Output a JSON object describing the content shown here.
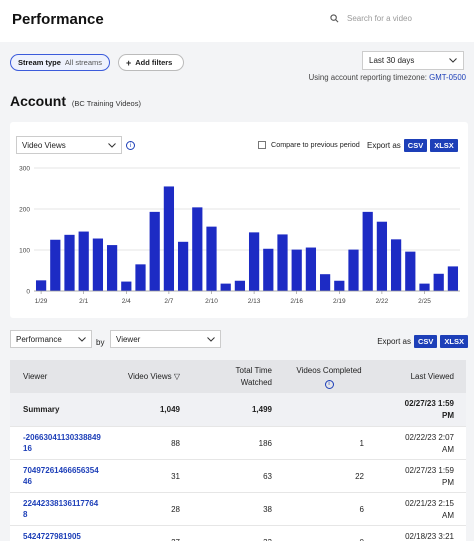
{
  "header": {
    "title": "Performance",
    "search_placeholder": "Search for a video"
  },
  "filters": {
    "stream_type_label": "Stream type",
    "stream_type_value": "All streams",
    "add_filters_label": "Add filters",
    "date_range": "Last 30 days",
    "timezone_text": "Using account reporting timezone:",
    "timezone_value": "GMT-0500"
  },
  "account": {
    "title": "Account",
    "subtitle": "(BC Training Videos)"
  },
  "chart_controls": {
    "metric": "Video Views",
    "compare_label": "Compare to previous period",
    "export_label": "Export as",
    "csv": "CSV",
    "xlsx": "XLSX"
  },
  "chart_data": {
    "type": "bar",
    "series": [
      {
        "name": "Video Views",
        "values": [
          26,
          125,
          137,
          145,
          128,
          112,
          23,
          65,
          193,
          255,
          120,
          204,
          157,
          18,
          25,
          143,
          103,
          138,
          101,
          106,
          41,
          25,
          101,
          193,
          169,
          126,
          96,
          18,
          42,
          60
        ]
      }
    ],
    "x_tick_labels": [
      "1/29",
      "2/1",
      "2/4",
      "2/7",
      "2/10",
      "2/13",
      "2/16",
      "2/19",
      "2/22",
      "2/25"
    ],
    "y_tick_labels": [
      "0",
      "100",
      "200",
      "300"
    ],
    "ylim": [
      0,
      300
    ],
    "color": "#1d2bc4"
  },
  "table_controls": {
    "group": "Performance",
    "by_label": "by",
    "dimension": "Viewer",
    "export_label": "Export as",
    "csv": "CSV",
    "xlsx": "XLSX"
  },
  "table": {
    "headers": {
      "viewer": "Viewer",
      "video_views": "Video Views",
      "total_time": "Total Time Watched",
      "videos_completed": "Videos Completed",
      "last_viewed": "Last Viewed"
    },
    "summary": {
      "label": "Summary",
      "video_views": "1,049",
      "total_time": "1,499",
      "videos_completed": "",
      "last_viewed": "02/27/23 1:59 PM"
    },
    "rows": [
      {
        "viewer": "-2066304113033884916",
        "video_views": "88",
        "total_time": "186",
        "videos_completed": "1",
        "last_viewed": "02/22/23 2:07 AM"
      },
      {
        "viewer": "7049726146665635446",
        "video_views": "31",
        "total_time": "63",
        "videos_completed": "22",
        "last_viewed": "02/27/23 1:59 PM"
      },
      {
        "viewer": "224423381361177648",
        "video_views": "28",
        "total_time": "38",
        "videos_completed": "6",
        "last_viewed": "02/21/23 2:15 AM"
      },
      {
        "viewer": "5424727981905",
        "video_views": "27",
        "total_time": "33",
        "videos_completed": "0",
        "last_viewed": "02/18/23 3:21 AM"
      }
    ]
  }
}
